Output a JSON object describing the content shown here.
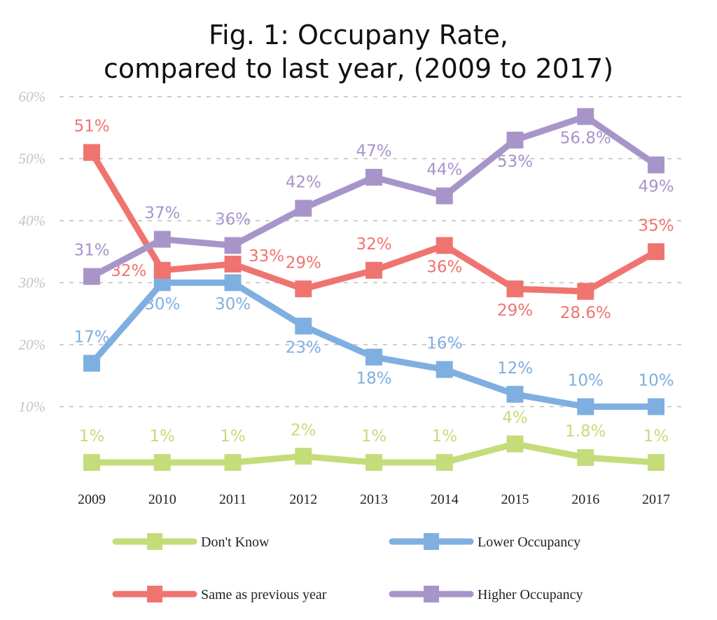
{
  "chart_data": {
    "type": "line",
    "title_line1": "Fig. 1: Occupany Rate,",
    "title_line2": "compared to last year, (2009 to 2017)",
    "xlabel": "",
    "ylabel": "",
    "categories": [
      "2009",
      "2010",
      "2011",
      "2012",
      "2013",
      "2014",
      "2015",
      "2016",
      "2017"
    ],
    "ylim": [
      0,
      60
    ],
    "yticks": [
      10,
      20,
      30,
      40,
      50,
      60
    ],
    "ytick_labels": [
      "10%",
      "20%",
      "30%",
      "40%",
      "50%",
      "60%"
    ],
    "grid": "horizontal dashed",
    "legend_position": "bottom",
    "series": [
      {
        "name": "Don't Know",
        "color": "#c5dc7a",
        "values": [
          1,
          1,
          1,
          2,
          1,
          1,
          4,
          1.8,
          1
        ],
        "labels": [
          "1%",
          "1%",
          "1%",
          "2%",
          "1%",
          "1%",
          "4%",
          "1.8%",
          "1%"
        ]
      },
      {
        "name": "Lower Occupancy",
        "color": "#7eafe0",
        "values": [
          17,
          30,
          30,
          23,
          18,
          16,
          12,
          10,
          10
        ],
        "labels": [
          "17%",
          "30%",
          "30%",
          "23%",
          "18%",
          "16%",
          "12%",
          "10%",
          "10%"
        ]
      },
      {
        "name": "Same as previous year",
        "color": "#ef7470",
        "values": [
          51,
          32,
          33,
          29,
          32,
          36,
          29,
          28.6,
          35
        ],
        "labels": [
          "51%",
          "32%",
          "33%",
          "29%",
          "32%",
          "36%",
          "29%",
          "28.6%",
          "35%"
        ]
      },
      {
        "name": "Higher Occupancy",
        "color": "#a795c9",
        "values": [
          31,
          37,
          36,
          42,
          47,
          44,
          53,
          56.8,
          49
        ],
        "labels": [
          "31%",
          "37%",
          "36%",
          "42%",
          "47%",
          "44%",
          "53%",
          "56.8%",
          "49%"
        ]
      }
    ]
  }
}
